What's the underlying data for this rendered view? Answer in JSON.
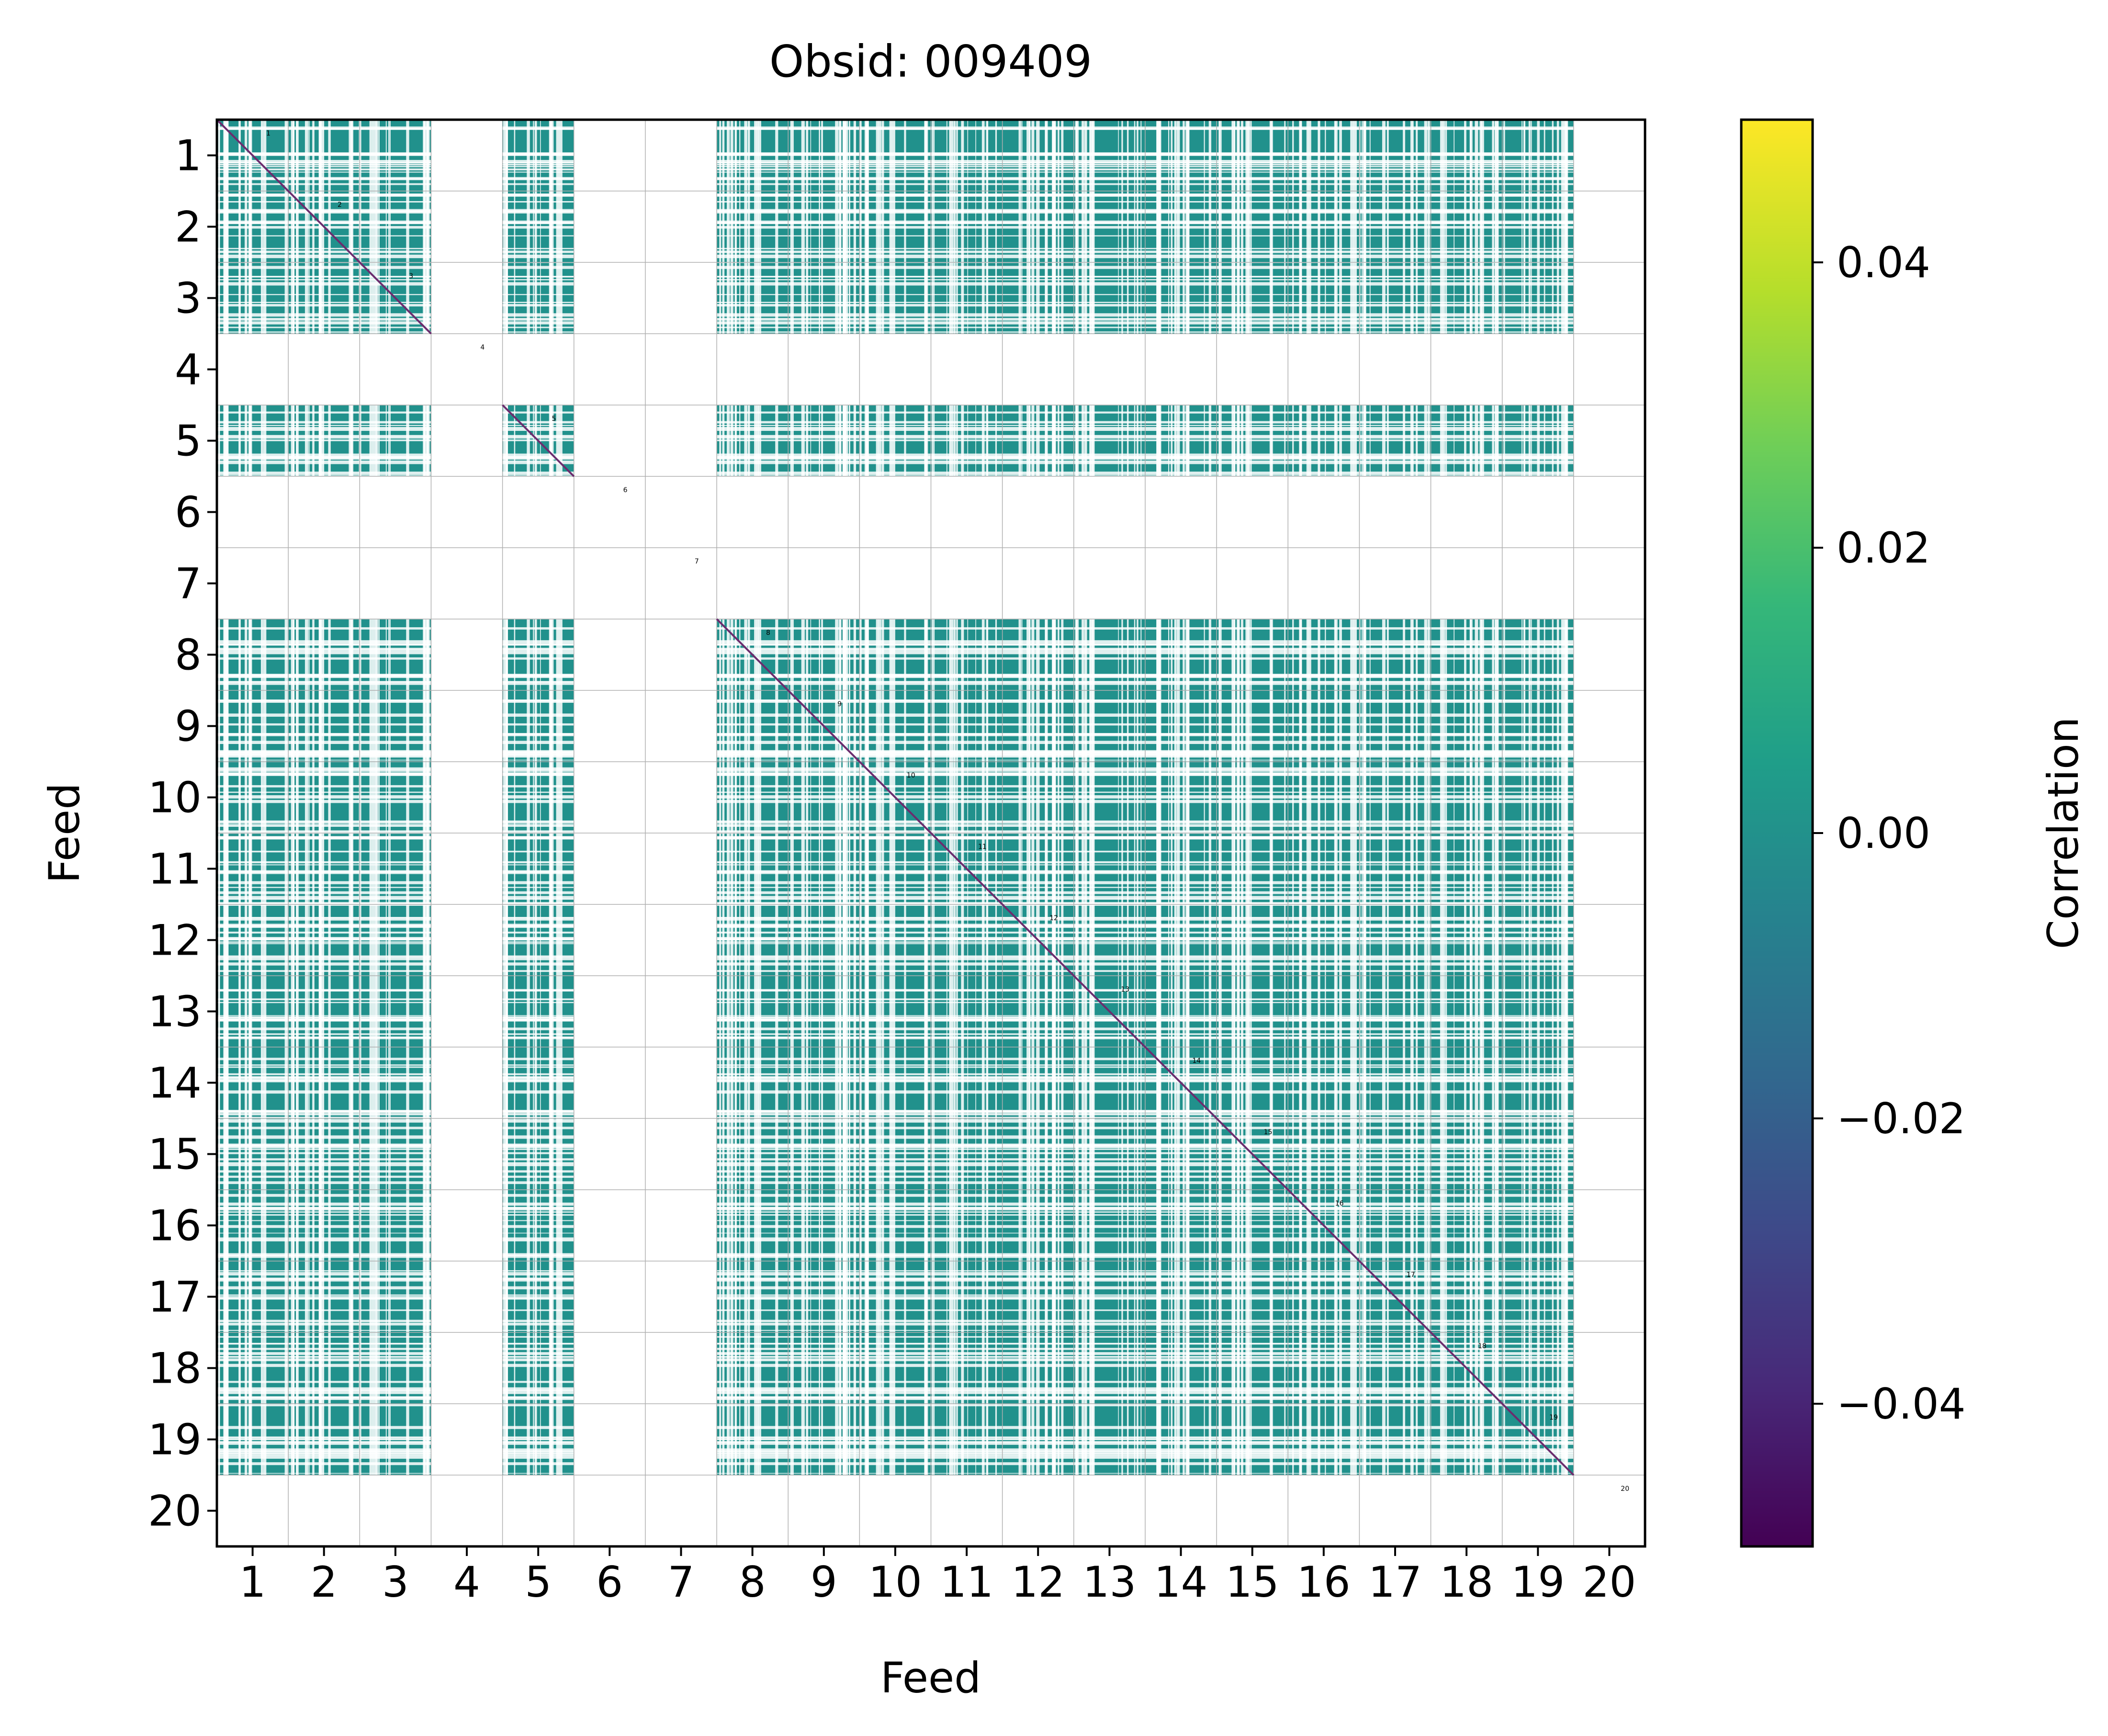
{
  "chart_data": {
    "type": "heatmap",
    "title": "Obsid: 009409",
    "xlabel": "Feed",
    "ylabel": "Feed",
    "x_ticks": [
      "1",
      "2",
      "3",
      "4",
      "5",
      "6",
      "7",
      "8",
      "9",
      "10",
      "11",
      "12",
      "13",
      "14",
      "15",
      "16",
      "17",
      "18",
      "19",
      "20"
    ],
    "y_ticks": [
      "1",
      "2",
      "3",
      "4",
      "5",
      "6",
      "7",
      "8",
      "9",
      "10",
      "11",
      "12",
      "13",
      "14",
      "15",
      "16",
      "17",
      "18",
      "19",
      "20"
    ],
    "feeds": [
      1,
      2,
      3,
      4,
      5,
      6,
      7,
      8,
      9,
      10,
      11,
      12,
      13,
      14,
      15,
      16,
      17,
      18,
      19,
      20
    ],
    "active_feeds": [
      1,
      2,
      3,
      5,
      8,
      9,
      10,
      11,
      12,
      13,
      14,
      15,
      16,
      17,
      18,
      19
    ],
    "diagonal_value": -0.05,
    "offdiagonal_value": 0.0,
    "block_labels": [
      "1",
      "2",
      "3",
      "4",
      "5",
      "6",
      "7",
      "8",
      "9",
      "10",
      "11",
      "12",
      "13",
      "14",
      "15",
      "16",
      "17",
      "18",
      "19",
      "20"
    ],
    "colorbar": {
      "label": "Correlation",
      "range": [
        -0.05,
        0.05
      ],
      "ticks": [
        -0.04,
        -0.02,
        0.0,
        0.02,
        0.04
      ],
      "tick_labels": [
        "−0.04",
        "−0.02",
        "0.00",
        "0.02",
        "0.04"
      ],
      "colormap": "viridis"
    },
    "grid": true
  },
  "colors": {
    "cell": "#21918c",
    "diagonal": "#6b2c6e",
    "grid": "#b0b0b0",
    "background": "#ffffff"
  }
}
